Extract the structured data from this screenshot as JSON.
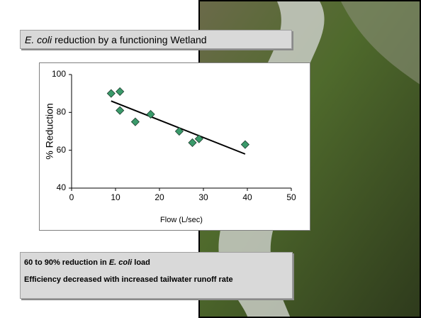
{
  "title": {
    "italic": "E. coli",
    "rest": " reduction by a functioning Wetland"
  },
  "chart_data": {
    "type": "scatter",
    "x_label": "Flow (L/sec)",
    "y_label": "% Reduction",
    "x": [
      9,
      11,
      11,
      14.5,
      18,
      24.5,
      27.5,
      29,
      39.5
    ],
    "values": [
      90,
      91,
      81,
      75,
      79,
      70,
      64,
      66,
      63
    ],
    "color": "#3a9a6a",
    "xlim": [
      0,
      50
    ],
    "ylim": [
      40,
      100
    ],
    "xticks": [
      0,
      10,
      20,
      30,
      40,
      50
    ],
    "yticks": [
      40,
      60,
      80,
      100
    ],
    "trendline": {
      "x": [
        9,
        39.5
      ],
      "y": [
        86,
        58
      ]
    }
  },
  "notes": {
    "line1": {
      "before": "60 to 90% reduction in ",
      "italic": "E. coli",
      "after": " load"
    },
    "line2": "Efficiency decreased with increased tailwater runoff rate"
  }
}
